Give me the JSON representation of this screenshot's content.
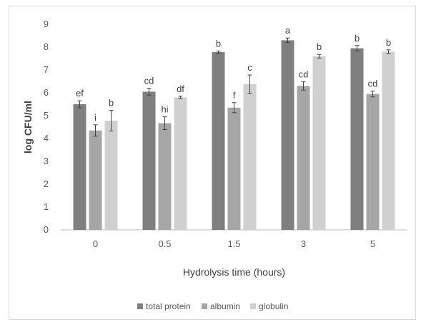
{
  "chart_data": {
    "type": "bar",
    "title": "",
    "xlabel": "Hydrolysis time (hours)",
    "ylabel": "log CFU/ml",
    "ylim": [
      0,
      9
    ],
    "yticks": [
      "0",
      "1",
      "2",
      "3",
      "4",
      "5",
      "6",
      "7",
      "8",
      "9"
    ],
    "categories": [
      "0",
      "0.5",
      "1.5",
      "3",
      "5"
    ],
    "legend_position": "bottom",
    "grid": false,
    "series": [
      {
        "name": "total protein",
        "color": "#7f7f7f",
        "values": [
          5.5,
          6.05,
          7.78,
          8.3,
          7.95
        ],
        "errors": [
          0.15,
          0.15,
          0.05,
          0.1,
          0.12
        ],
        "labels": [
          "ef",
          "cd",
          "b",
          "a",
          "b"
        ]
      },
      {
        "name": "albumin",
        "color": "#a6a6a6",
        "values": [
          4.35,
          4.67,
          5.35,
          6.3,
          5.95
        ],
        "errors": [
          0.25,
          0.28,
          0.22,
          0.18,
          0.13
        ],
        "labels": [
          "i",
          "hi",
          "f",
          "cd",
          "cd"
        ]
      },
      {
        "name": "globulin",
        "color": "#d0d0d0",
        "values": [
          4.78,
          5.8,
          6.38,
          7.6,
          7.8
        ],
        "errors": [
          0.45,
          0.05,
          0.4,
          0.08,
          0.08
        ],
        "labels": [
          "b",
          "df",
          "c",
          "b",
          "b"
        ]
      }
    ]
  }
}
